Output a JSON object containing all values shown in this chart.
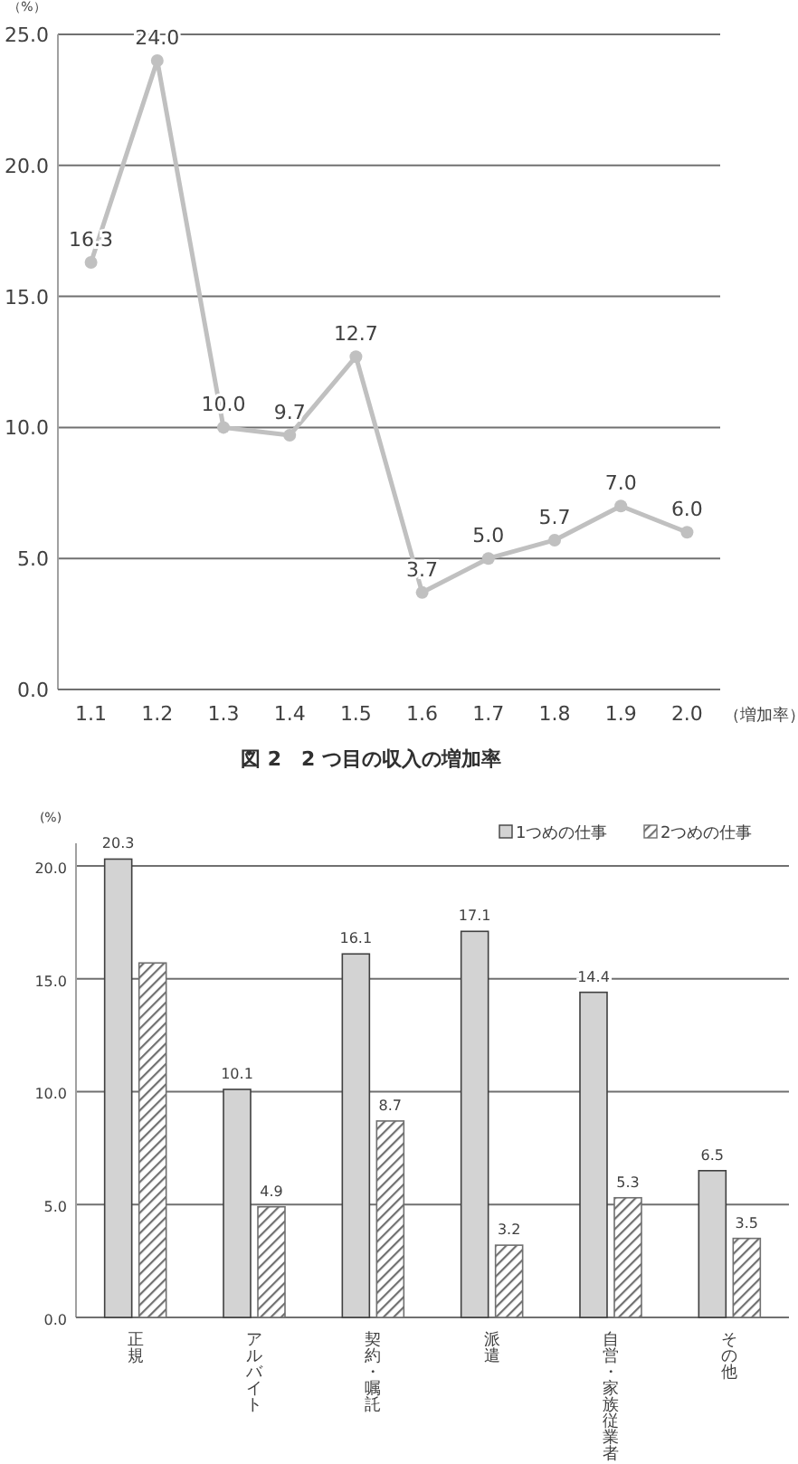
{
  "chart_data": [
    {
      "type": "line",
      "title": "図 2　2 つ目の収入の増加率",
      "ylabel": "（%）",
      "xlabel": "（増加率）",
      "categories": [
        "1.1",
        "1.2",
        "1.3",
        "1.4",
        "1.5",
        "1.6",
        "1.7",
        "1.8",
        "1.9",
        "2.0"
      ],
      "series": [
        {
          "color": "#c0c0c0",
          "values": [
            16.3,
            24.0,
            10.0,
            9.7,
            12.7,
            3.7,
            5.0,
            5.7,
            7.0,
            6.0
          ],
          "value_labels": [
            "16.3",
            "24.0",
            "10.0",
            "9.7",
            "12.7",
            "3.7",
            "5.0",
            "5.7",
            "7.0",
            "6.0"
          ]
        }
      ],
      "ylim": [
        0,
        25
      ],
      "yticks": [
        {
          "value": 0,
          "label": "0.0"
        },
        {
          "value": 5,
          "label": "5.0"
        },
        {
          "value": 10,
          "label": "10.0"
        },
        {
          "value": 15,
          "label": "15.0"
        },
        {
          "value": 20,
          "label": "20.0"
        },
        {
          "value": 25,
          "label": "25.0"
        }
      ],
      "grid": "y",
      "marker": "circle",
      "line_style": "solid",
      "legend": false
    },
    {
      "type": "bar",
      "ylabel": "(%)",
      "categories": [
        "正規",
        "アルバイト",
        "契約・嘱託",
        "派遣",
        "自営・家族従業者",
        "その他"
      ],
      "series": [
        {
          "name": "1つめの仕事",
          "color": "#d3d3d3",
          "values": [
            20.3,
            10.1,
            16.1,
            17.1,
            14.4,
            6.5
          ],
          "value_labels": [
            "20.3",
            "10.1",
            "16.1",
            "17.1",
            "14.4",
            "6.5"
          ]
        },
        {
          "name": "2つめの仕事",
          "color": "#707070",
          "values": [
            15.7,
            4.9,
            8.7,
            3.2,
            5.3,
            3.5
          ],
          "value_labels": [
            null,
            "4.9",
            "8.7",
            "3.2",
            "5.3",
            "3.5"
          ]
        }
      ],
      "ylim": [
        0,
        21
      ],
      "yticks": [
        {
          "value": 0,
          "label": "0.0"
        },
        {
          "value": 5,
          "label": "5.0"
        },
        {
          "value": 10,
          "label": "10.0"
        },
        {
          "value": 15,
          "label": "15.0"
        },
        {
          "value": 20,
          "label": "20.0"
        }
      ],
      "grid": "y",
      "legend": "top right"
    }
  ]
}
